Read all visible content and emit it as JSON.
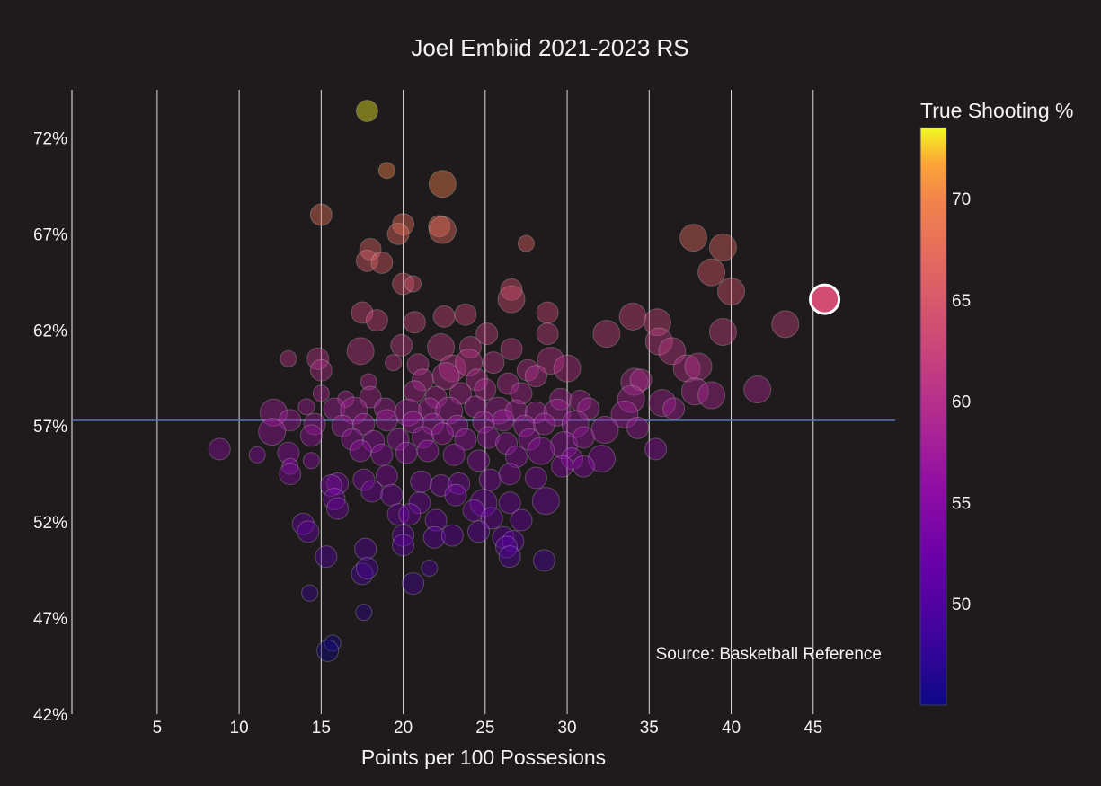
{
  "chart_data": {
    "type": "scatter",
    "title": "Joel Embiid 2021-2023 RS",
    "xlabel": "Points per 100 Possesions",
    "ylabel": "",
    "xlim": [
      -0.2,
      50
    ],
    "ylim": [
      42,
      74.5
    ],
    "x_ticks": [
      5,
      10,
      15,
      20,
      25,
      30,
      35,
      40,
      45
    ],
    "y_ticks": [
      42,
      47,
      52,
      57,
      62,
      67,
      72
    ],
    "y_tick_labels": [
      "42%",
      "47%",
      "52%",
      "57%",
      "62%",
      "67%",
      "72%"
    ],
    "reference_line_y": 57.3,
    "grid": "vertical",
    "colorbar": {
      "title": "True Shooting %",
      "range": [
        45,
        73.5
      ],
      "ticks": [
        50,
        55,
        60,
        65,
        70
      ],
      "colorscale": "plasma"
    },
    "annotation": "Source: Basketball Reference",
    "highlight": {
      "x": 45.7,
      "y": 63.6
    },
    "points": [
      [
        17.8,
        73.4,
        2
      ],
      [
        19.0,
        70.3,
        1
      ],
      [
        22.4,
        69.6,
        3
      ],
      [
        15.0,
        68.0,
        2
      ],
      [
        20.0,
        67.5,
        2
      ],
      [
        22.2,
        67.4,
        2
      ],
      [
        22.4,
        67.2,
        3
      ],
      [
        19.7,
        67.0,
        2
      ],
      [
        27.5,
        66.5,
        1
      ],
      [
        37.7,
        66.8,
        3
      ],
      [
        39.5,
        66.3,
        3
      ],
      [
        18.0,
        66.2,
        2
      ],
      [
        17.8,
        65.6,
        2
      ],
      [
        18.7,
        65.5,
        2
      ],
      [
        38.8,
        65.0,
        3
      ],
      [
        20.0,
        64.4,
        2
      ],
      [
        20.6,
        64.4,
        1
      ],
      [
        40.0,
        64.0,
        3
      ],
      [
        26.6,
        64.1,
        2
      ],
      [
        26.6,
        63.6,
        3
      ],
      [
        17.5,
        62.9,
        2
      ],
      [
        18.4,
        62.5,
        2
      ],
      [
        20.7,
        62.4,
        2
      ],
      [
        22.5,
        62.7,
        2
      ],
      [
        23.8,
        62.8,
        2
      ],
      [
        28.8,
        62.9,
        2
      ],
      [
        34.0,
        62.7,
        3
      ],
      [
        35.5,
        62.4,
        3
      ],
      [
        43.3,
        62.3,
        3
      ],
      [
        39.5,
        61.9,
        3
      ],
      [
        32.4,
        61.8,
        3
      ],
      [
        25.1,
        61.8,
        2
      ],
      [
        28.8,
        61.8,
        2
      ],
      [
        35.6,
        61.4,
        3
      ],
      [
        36.4,
        60.9,
        3
      ],
      [
        17.4,
        60.9,
        3
      ],
      [
        19.9,
        61.2,
        2
      ],
      [
        22.3,
        61.1,
        3
      ],
      [
        24.1,
        61.1,
        2
      ],
      [
        26.6,
        61.0,
        2
      ],
      [
        13.0,
        60.5,
        1
      ],
      [
        14.8,
        60.5,
        2
      ],
      [
        15.0,
        59.9,
        2
      ],
      [
        19.4,
        60.3,
        1
      ],
      [
        20.9,
        60.2,
        2
      ],
      [
        23.0,
        60.0,
        3
      ],
      [
        24.0,
        60.3,
        3
      ],
      [
        25.5,
        60.3,
        2
      ],
      [
        27.6,
        59.9,
        2
      ],
      [
        29.0,
        60.4,
        3
      ],
      [
        30.0,
        60.0,
        3
      ],
      [
        37.3,
        60.0,
        3
      ],
      [
        38.0,
        60.1,
        3
      ],
      [
        17.9,
        59.3,
        1
      ],
      [
        21.2,
        59.4,
        2
      ],
      [
        22.6,
        59.6,
        3
      ],
      [
        24.5,
        59.4,
        2
      ],
      [
        26.4,
        59.2,
        2
      ],
      [
        28.1,
        59.6,
        2
      ],
      [
        34.1,
        59.3,
        3
      ],
      [
        34.5,
        59.4,
        2
      ],
      [
        41.6,
        58.9,
        3
      ],
      [
        37.8,
        58.8,
        3
      ],
      [
        38.8,
        58.6,
        3
      ],
      [
        15.0,
        58.7,
        1
      ],
      [
        16.5,
        58.4,
        1
      ],
      [
        18.0,
        58.5,
        2
      ],
      [
        20.7,
        58.8,
        2
      ],
      [
        22.0,
        58.5,
        2
      ],
      [
        23.5,
        58.7,
        2
      ],
      [
        25.0,
        58.9,
        2
      ],
      [
        27.2,
        58.7,
        2
      ],
      [
        29.6,
        58.4,
        2
      ],
      [
        30.8,
        58.3,
        2
      ],
      [
        33.9,
        58.4,
        3
      ],
      [
        35.8,
        58.2,
        3
      ],
      [
        36.5,
        57.9,
        2
      ],
      [
        12.1,
        57.7,
        3
      ],
      [
        14.1,
        58.0,
        1
      ],
      [
        15.8,
        57.9,
        2
      ],
      [
        17.0,
        57.8,
        3
      ],
      [
        18.9,
        57.9,
        2
      ],
      [
        20.3,
        57.7,
        3
      ],
      [
        21.6,
        57.9,
        2
      ],
      [
        22.8,
        57.8,
        3
      ],
      [
        24.4,
        58.0,
        2
      ],
      [
        25.8,
        57.8,
        3
      ],
      [
        26.9,
        57.8,
        2
      ],
      [
        28.1,
        57.7,
        2
      ],
      [
        29.4,
        57.7,
        3
      ],
      [
        31.3,
        57.9,
        2
      ],
      [
        33.5,
        57.6,
        3
      ],
      [
        13.1,
        57.3,
        2
      ],
      [
        14.6,
        57.1,
        2
      ],
      [
        16.3,
        57.0,
        2
      ],
      [
        17.6,
        57.1,
        2
      ],
      [
        19.0,
        57.3,
        2
      ],
      [
        20.6,
        57.2,
        2
      ],
      [
        21.8,
        57.1,
        2
      ],
      [
        23.3,
        57.0,
        2
      ],
      [
        24.9,
        57.2,
        2
      ],
      [
        26.1,
        57.3,
        2
      ],
      [
        27.4,
        57.0,
        2
      ],
      [
        28.6,
        57.1,
        2
      ],
      [
        30.5,
        57.1,
        3
      ],
      [
        32.3,
        56.8,
        3
      ],
      [
        34.3,
        56.9,
        2
      ],
      [
        12.0,
        56.7,
        3
      ],
      [
        14.4,
        56.5,
        2
      ],
      [
        16.9,
        56.3,
        2
      ],
      [
        18.2,
        56.2,
        2
      ],
      [
        19.7,
        56.3,
        2
      ],
      [
        21.2,
        56.4,
        2
      ],
      [
        22.4,
        56.6,
        2
      ],
      [
        23.8,
        56.3,
        2
      ],
      [
        25.2,
        56.4,
        2
      ],
      [
        26.3,
        56.1,
        2
      ],
      [
        27.7,
        56.3,
        2
      ],
      [
        29.8,
        56.0,
        3
      ],
      [
        31.0,
        56.4,
        2
      ],
      [
        8.8,
        55.8,
        2
      ],
      [
        11.1,
        55.5,
        1
      ],
      [
        13.0,
        55.6,
        2
      ],
      [
        14.4,
        55.2,
        1
      ],
      [
        17.4,
        55.7,
        2
      ],
      [
        18.7,
        55.5,
        2
      ],
      [
        20.2,
        55.6,
        2
      ],
      [
        21.5,
        55.7,
        2
      ],
      [
        23.1,
        55.5,
        2
      ],
      [
        24.6,
        55.2,
        2
      ],
      [
        26.9,
        55.4,
        2
      ],
      [
        28.4,
        55.7,
        3
      ],
      [
        30.3,
        55.3,
        2
      ],
      [
        32.1,
        55.3,
        3
      ],
      [
        35.4,
        55.8,
        2
      ],
      [
        13.1,
        54.9,
        1
      ],
      [
        13.1,
        54.5,
        2
      ],
      [
        16.0,
        54.0,
        2
      ],
      [
        17.6,
        54.2,
        2
      ],
      [
        19.0,
        54.4,
        2
      ],
      [
        21.1,
        54.1,
        2
      ],
      [
        22.3,
        53.9,
        2
      ],
      [
        23.4,
        54.0,
        2
      ],
      [
        25.3,
        54.2,
        2
      ],
      [
        26.5,
        54.5,
        2
      ],
      [
        28.1,
        54.3,
        2
      ],
      [
        29.7,
        54.9,
        2
      ],
      [
        31.0,
        54.9,
        2
      ],
      [
        15.6,
        53.9,
        2
      ],
      [
        18.1,
        53.6,
        2
      ],
      [
        19.3,
        53.4,
        2
      ],
      [
        21.0,
        53.0,
        2
      ],
      [
        23.2,
        53.4,
        2
      ],
      [
        24.9,
        53.0,
        3
      ],
      [
        26.5,
        53.0,
        2
      ],
      [
        28.7,
        53.1,
        3
      ],
      [
        15.8,
        53.2,
        2
      ],
      [
        16.0,
        52.7,
        2
      ],
      [
        19.7,
        52.4,
        2
      ],
      [
        20.4,
        52.4,
        2
      ],
      [
        22.0,
        52.1,
        2
      ],
      [
        24.3,
        52.6,
        2
      ],
      [
        25.4,
        52.2,
        2
      ],
      [
        27.2,
        52.1,
        2
      ],
      [
        13.9,
        51.9,
        2
      ],
      [
        14.2,
        51.5,
        2
      ],
      [
        20.0,
        51.3,
        2
      ],
      [
        21.9,
        51.2,
        2
      ],
      [
        23.0,
        51.3,
        2
      ],
      [
        24.6,
        51.5,
        2
      ],
      [
        26.1,
        51.2,
        2
      ],
      [
        26.7,
        51.0,
        2
      ],
      [
        17.7,
        50.6,
        2
      ],
      [
        20.0,
        50.8,
        2
      ],
      [
        26.3,
        50.7,
        2
      ],
      [
        15.3,
        50.2,
        2
      ],
      [
        26.5,
        50.2,
        2
      ],
      [
        28.6,
        50.0,
        2
      ],
      [
        17.5,
        49.3,
        2
      ],
      [
        17.8,
        49.6,
        2
      ],
      [
        21.6,
        49.6,
        1
      ],
      [
        20.6,
        48.8,
        2
      ],
      [
        14.3,
        48.3,
        1
      ],
      [
        17.6,
        47.3,
        1
      ],
      [
        15.7,
        45.7,
        1
      ],
      [
        15.4,
        45.3,
        2
      ]
    ]
  }
}
